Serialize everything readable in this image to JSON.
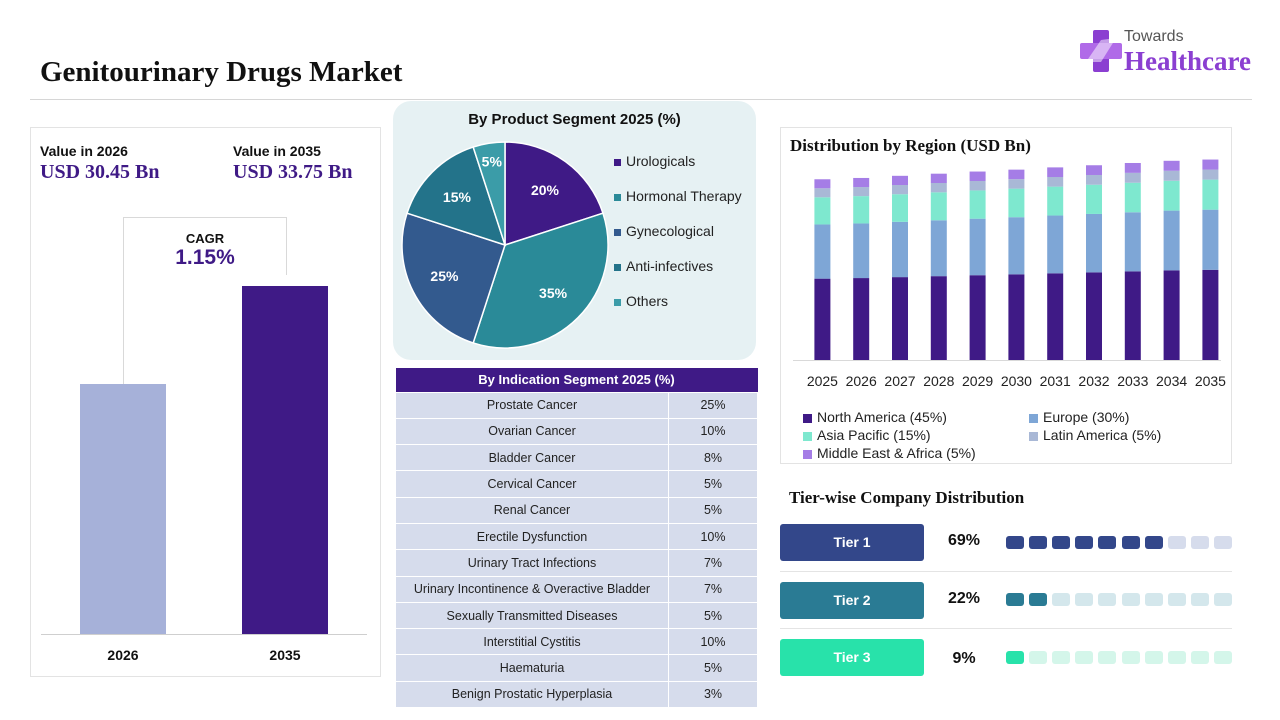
{
  "header": {
    "title": "Genitourinary Drugs Market",
    "logo_top": "Towards",
    "logo_bottom": "Healthcare"
  },
  "value_panel": {
    "label_2026": "Value in 2026",
    "value_2026": "USD 30.45 Bn",
    "label_2035": "Value in 2035",
    "value_2035": "USD 33.75 Bn",
    "cagr_label": "CAGR",
    "cagr_value": "1.15%",
    "colors": {
      "bar_2026": "#a6b1d9",
      "bar_2035": "#3f1a86"
    }
  },
  "product_segment": {
    "title": "By Product Segment 2025 (%)",
    "items": [
      {
        "label": "Urologicals",
        "value_label": "20%",
        "color": "#3f1a86"
      },
      {
        "label": "Hormonal Therapy",
        "value_label": "35%",
        "color": "#2a8a98"
      },
      {
        "label": "Gynecological",
        "value_label": "25%",
        "color": "#335a8e"
      },
      {
        "label": "Anti-infectives",
        "value_label": "15%",
        "color": "#23738a"
      },
      {
        "label": "Others",
        "value_label": "5%",
        "color": "#3b9ca8"
      }
    ]
  },
  "indication_segment": {
    "title": "By Indication Segment 2025 (%)",
    "rows": [
      {
        "name": "Prostate Cancer",
        "pct": "25%"
      },
      {
        "name": "Ovarian Cancer",
        "pct": "10%"
      },
      {
        "name": "Bladder Cancer",
        "pct": "8%"
      },
      {
        "name": "Cervical Cancer",
        "pct": "5%"
      },
      {
        "name": "Renal Cancer",
        "pct": "5%"
      },
      {
        "name": "Erectile Dysfunction",
        "pct": "10%"
      },
      {
        "name": "Urinary Tract Infections",
        "pct": "7%"
      },
      {
        "name": "Urinary Incontinence & Overactive Bladder",
        "pct": "7%"
      },
      {
        "name": "Sexually Transmitted Diseases",
        "pct": "5%"
      },
      {
        "name": "Interstitial Cystitis",
        "pct": "10%"
      },
      {
        "name": "Haematuria",
        "pct": "5%"
      },
      {
        "name": "Benign Prostatic Hyperplasia",
        "pct": "3%"
      }
    ]
  },
  "region": {
    "title": "Distribution by Region (USD Bn)"
  },
  "tiers": {
    "title": "Tier-wise Company Distribution",
    "items": [
      {
        "label": "Tier 1",
        "pct": "69%",
        "filled": 7,
        "total": 10,
        "color": "#33478a",
        "dim": "#d6dcec"
      },
      {
        "label": "Tier 2",
        "pct": "22%",
        "filled": 2,
        "total": 10,
        "color": "#2a7b94",
        "dim": "#d4e7ec"
      },
      {
        "label": "Tier 3",
        "pct": "9%",
        "filled": 1,
        "total": 10,
        "color": "#28e2aa",
        "dim": "#d4f6ea"
      }
    ]
  },
  "chart_data": [
    {
      "type": "bar",
      "categories": [
        "2026",
        "2035"
      ],
      "values": [
        30.45,
        33.75
      ]
    },
    {
      "type": "pie",
      "title": "By Product Segment 2025 (%)",
      "categories": [
        "Urologicals",
        "Hormonal Therapy",
        "Gynecological",
        "Anti-infectives",
        "Others"
      ],
      "values": [
        20,
        35,
        25,
        15,
        5
      ]
    },
    {
      "type": "bar",
      "stacked": true,
      "title": "Distribution by Region (USD Bn)",
      "categories": [
        "2025",
        "2026",
        "2027",
        "2028",
        "2029",
        "2030",
        "2031",
        "2032",
        "2033",
        "2034",
        "2035"
      ],
      "series": [
        {
          "name": "North America (45%)",
          "color": "#3f1a86",
          "values": [
            13.7,
            13.8,
            13.96,
            14.12,
            14.28,
            14.43,
            14.6,
            14.76,
            14.93,
            15.1,
            15.19
          ]
        },
        {
          "name": "Europe (30%)",
          "color": "#7ea6d6",
          "values": [
            9.13,
            9.2,
            9.31,
            9.41,
            9.52,
            9.62,
            9.73,
            9.84,
            9.95,
            10.06,
            10.13
          ]
        },
        {
          "name": "Asia Pacific (15%)",
          "color": "#7ee8cf",
          "values": [
            4.57,
            4.6,
            4.65,
            4.71,
            4.76,
            4.81,
            4.87,
            4.92,
            4.98,
            5.03,
            5.06
          ]
        },
        {
          "name": "Latin America (5%)",
          "color": "#a9b8d6",
          "values": [
            1.52,
            1.53,
            1.55,
            1.57,
            1.59,
            1.6,
            1.62,
            1.64,
            1.66,
            1.68,
            1.69
          ]
        },
        {
          "name": "Middle East & Africa (5%)",
          "color": "#a57de6",
          "values": [
            1.52,
            1.53,
            1.55,
            1.57,
            1.59,
            1.6,
            1.62,
            1.64,
            1.66,
            1.68,
            1.69
          ]
        }
      ]
    }
  ]
}
